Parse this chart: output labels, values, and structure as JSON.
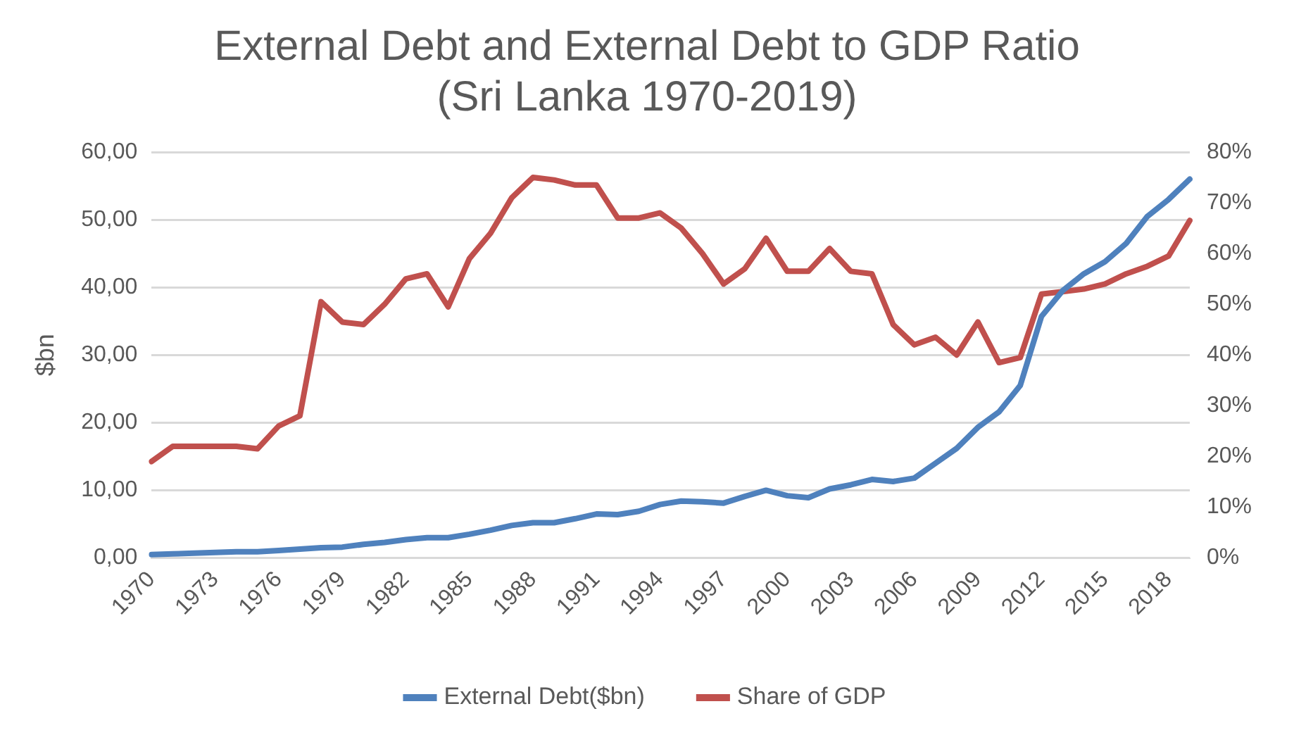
{
  "chart_data": {
    "type": "line",
    "title": "External Debt and External Debt to GDP Ratio\n(Sri Lanka 1970-2019)",
    "ylabel": "$bn",
    "categories": [
      "1970",
      null,
      null,
      "1973",
      null,
      null,
      "1976",
      null,
      null,
      "1979",
      null,
      null,
      "1982",
      null,
      null,
      "1985",
      null,
      null,
      "1988",
      null,
      null,
      "1991",
      null,
      null,
      "1994",
      null,
      null,
      "1997",
      null,
      null,
      "2000",
      null,
      null,
      "2003",
      null,
      null,
      "2006",
      null,
      null,
      "2009",
      null,
      null,
      "2012",
      null,
      null,
      "2015",
      null,
      null,
      "2018",
      null
    ],
    "series": [
      {
        "name": "External Debt($bn)",
        "color": "#4f81bd",
        "values": [
          0.5,
          0.6,
          0.7,
          0.8,
          0.9,
          0.9,
          1.1,
          1.3,
          1.5,
          1.6,
          2.0,
          2.3,
          2.7,
          3.0,
          3.0,
          3.5,
          4.1,
          4.8,
          5.2,
          5.2,
          5.8,
          6.5,
          6.4,
          6.9,
          7.9,
          8.4,
          8.3,
          8.1,
          9.1,
          10.0,
          9.2,
          8.9,
          10.2,
          10.8,
          11.6,
          11.3,
          11.8,
          14.0,
          16.2,
          19.3,
          21.6,
          25.5,
          35.7,
          39.5,
          42.0,
          43.8,
          46.5,
          50.5,
          53.0,
          56.0
        ]
      },
      {
        "name": "Share of GDP",
        "color": "#c0504d",
        "axis": "y2",
        "values": [
          19,
          22,
          22,
          22,
          22,
          21.5,
          26,
          28,
          50.5,
          46.5,
          46,
          50,
          55,
          56,
          49.5,
          59,
          64,
          71,
          75,
          74.5,
          73.5,
          73.5,
          67,
          67,
          68,
          65,
          60,
          54,
          57,
          63,
          56.5,
          56.5,
          61,
          56.5,
          56,
          46,
          42,
          43.5,
          40,
          46.5,
          38.5,
          39.5,
          52,
          52.5,
          53,
          54,
          56,
          57.5,
          59.5,
          66.5
        ]
      }
    ],
    "ylim": [
      0,
      60
    ],
    "yticks": [
      {
        "value": 0,
        "label": "0,00"
      },
      {
        "value": 10,
        "label": "10,00"
      },
      {
        "value": 20,
        "label": "20,00"
      },
      {
        "value": 30,
        "label": "30,00"
      },
      {
        "value": 40,
        "label": "40,00"
      },
      {
        "value": 50,
        "label": "50,00"
      },
      {
        "value": 60,
        "label": "60,00"
      }
    ],
    "y2lim": [
      0,
      80
    ],
    "y2ticks": [
      {
        "value": 0,
        "label": "0%"
      },
      {
        "value": 10,
        "label": "10%"
      },
      {
        "value": 20,
        "label": "20%"
      },
      {
        "value": 30,
        "label": "30%"
      },
      {
        "value": 40,
        "label": "40%"
      },
      {
        "value": 50,
        "label": "50%"
      },
      {
        "value": 60,
        "label": "60%"
      },
      {
        "value": 70,
        "label": "70%"
      },
      {
        "value": 80,
        "label": "80%"
      }
    ],
    "grid": "y",
    "legend": "bottom",
    "marker": "none",
    "line_style": "solid"
  }
}
